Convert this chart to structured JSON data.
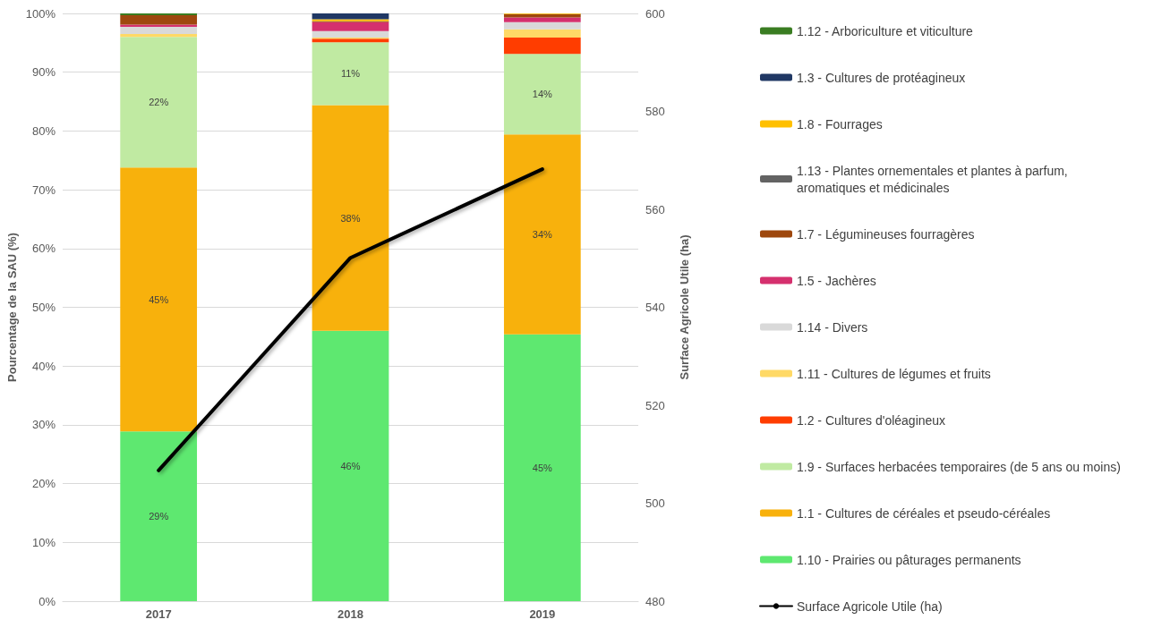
{
  "chart_data": {
    "type": "bar",
    "stacked": true,
    "categories": [
      "2017",
      "2018",
      "2019"
    ],
    "ylabel": "Pourcentage de la SAU (%)",
    "y2label": "Surface Agricole Utile (ha)",
    "ylim": [
      0,
      100
    ],
    "yticks": [
      {
        "value": 0,
        "label": "0%"
      },
      {
        "value": 10,
        "label": "10%"
      },
      {
        "value": 20,
        "label": "20%"
      },
      {
        "value": 30,
        "label": "30%"
      },
      {
        "value": 40,
        "label": "40%"
      },
      {
        "value": 50,
        "label": "50%"
      },
      {
        "value": 60,
        "label": "60%"
      },
      {
        "value": 70,
        "label": "70%"
      },
      {
        "value": 80,
        "label": "80%"
      },
      {
        "value": 90,
        "label": "90%"
      },
      {
        "value": 100,
        "label": "100%"
      }
    ],
    "y2lim": [
      480,
      600
    ],
    "y2ticks": [
      480,
      500,
      520,
      540,
      560,
      580,
      600
    ],
    "grid": "y",
    "legend": "right",
    "series": [
      {
        "name": "1.10 - Prairies ou pâturages permanents",
        "color": "#5ee870",
        "values": [
          28.9,
          46.0,
          45.4
        ],
        "value_labels": [
          "29%",
          "46%",
          "45%"
        ]
      },
      {
        "name": "1.1 - Cultures de céréales et pseudo-céréales",
        "color": "#f8b10c",
        "values": [
          44.9,
          38.4,
          34.0
        ],
        "value_labels": [
          "45%",
          "38%",
          "34%"
        ]
      },
      {
        "name": "1.9 - Surfaces herbacées temporaires (de 5 ans ou moins)",
        "color": "#c0eaa2",
        "values": [
          22.2,
          10.7,
          13.7
        ],
        "value_labels": [
          "22%",
          "11%",
          "14%"
        ]
      },
      {
        "name": "1.2 - Cultures d'oléagineux",
        "color": "#ff3d00",
        "values": [
          0,
          0.6,
          2.8
        ]
      },
      {
        "name": "1.11 - Cultures de légumes et fruits",
        "color": "#ffd966",
        "values": [
          0.5,
          0.2,
          1.4
        ]
      },
      {
        "name": "1.14 - Divers",
        "color": "#d9d9d9",
        "values": [
          1.2,
          1.1,
          1.2
        ]
      },
      {
        "name": "1.5 - Jachères",
        "color": "#d5306e",
        "values": [
          0.4,
          1.5,
          0.8
        ]
      },
      {
        "name": "1.7 - Légumineuses fourragères",
        "color": "#9e480e",
        "values": [
          1.6,
          0.2,
          0.6
        ]
      },
      {
        "name": "1.13 - Plantes ornementales et plantes à parfum, aromatiques et médicinales",
        "color": "#636363",
        "values": [
          0,
          0,
          0
        ]
      },
      {
        "name": "1.8 - Fourrages",
        "color": "#ffc000",
        "values": [
          0,
          0.3,
          0.1
        ]
      },
      {
        "name": "1.3 - Cultures de protéagineux",
        "color": "#203864",
        "values": [
          0,
          1.0,
          0
        ]
      },
      {
        "name": "1.12 - Arboriculture et viticulture",
        "color": "#3a7d22",
        "values": [
          0.3,
          0,
          0
        ]
      },
      {
        "name": "Surface Agricole Utile (ha)",
        "type": "line",
        "axis": "y2",
        "color": "#000000",
        "values": [
          506.7,
          550.1,
          568.2
        ]
      }
    ]
  }
}
